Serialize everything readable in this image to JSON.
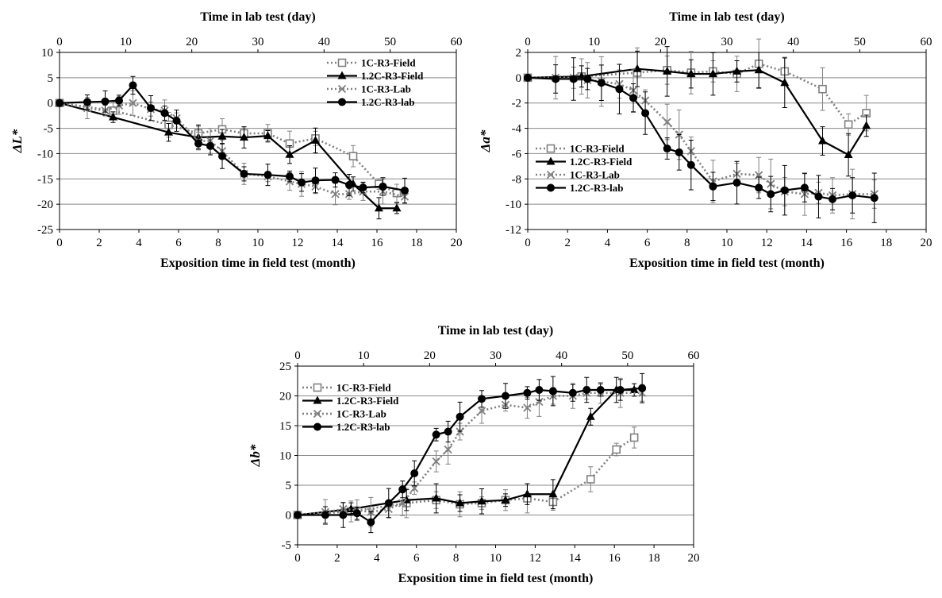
{
  "chart_data": [
    {
      "type": "line",
      "ylabel": "ΔL*",
      "xlabel": "Exposition time in field test (month)",
      "x2label": "Time in lab test (day)",
      "xlim": [
        0,
        20
      ],
      "x2lim": [
        0,
        60
      ],
      "ylim": [
        -25,
        10
      ],
      "x_ticks": [
        0,
        2,
        4,
        6,
        8,
        10,
        12,
        14,
        16,
        18,
        20
      ],
      "x2_ticks": [
        0,
        10,
        20,
        30,
        40,
        50,
        60
      ],
      "y_ticks": [
        10,
        5,
        0,
        -5,
        -10,
        -15,
        -20,
        -25
      ],
      "grid": "horizontal",
      "legend": "top-right",
      "series": [
        {
          "name": "1C-R3-Field",
          "marker": "square",
          "line": "dotted",
          "color": "#808080",
          "x": [
            0,
            2.7,
            5.5,
            7.0,
            8.2,
            9.3,
            10.5,
            11.6,
            12.9,
            14.8,
            16.1,
            17.0
          ],
          "y": [
            0,
            -1.5,
            -4.3,
            -6.0,
            -5.2,
            -6.0,
            -6.0,
            -8.0,
            -7.0,
            -10.5,
            -16.0,
            -17.8
          ]
        },
        {
          "name": "1.2C-R3-Field",
          "marker": "triangle",
          "line": "solid",
          "color": "#000000",
          "x": [
            0,
            2.7,
            5.5,
            7.0,
            8.2,
            9.3,
            10.5,
            11.6,
            12.9,
            14.8,
            16.1,
            17.0
          ],
          "y": [
            0,
            -2.8,
            -5.8,
            -6.8,
            -6.6,
            -6.8,
            -6.5,
            -10.2,
            -7.4,
            -16.0,
            -20.8,
            -20.8
          ]
        },
        {
          "name": "1C-R3-Lab",
          "marker": "x",
          "line": "dotted",
          "color": "#808080",
          "x": [
            0,
            1.4,
            2.3,
            3.0,
            3.7,
            4.6,
            5.3,
            5.9,
            7.0,
            7.6,
            8.2,
            9.3,
            10.5,
            11.6,
            12.2,
            12.9,
            13.9,
            14.6,
            15.3,
            16.3,
            17.4
          ],
          "y": [
            0,
            -1.0,
            -1.5,
            -0.5,
            0.0,
            -1.2,
            -1.5,
            -3.0,
            -7.5,
            -7.5,
            -9.5,
            -14.0,
            -14.5,
            -15.5,
            -16.0,
            -16.5,
            -18.0,
            -18.0,
            -17.5,
            -17.5,
            -18.5
          ]
        },
        {
          "name": "1.2C-R3-lab",
          "marker": "circle",
          "line": "solid",
          "color": "#000000",
          "x": [
            0,
            1.4,
            2.3,
            3.0,
            3.7,
            4.6,
            5.3,
            5.9,
            7.0,
            7.6,
            8.2,
            9.3,
            10.5,
            11.6,
            12.2,
            12.9,
            13.9,
            14.6,
            15.3,
            16.3,
            17.4
          ],
          "y": [
            0,
            0.2,
            0.3,
            0.5,
            3.5,
            -1.0,
            -2.0,
            -3.5,
            -8.0,
            -8.5,
            -10.5,
            -14.0,
            -14.2,
            -14.5,
            -15.7,
            -15.3,
            -15.2,
            -16.2,
            -16.7,
            -16.5,
            -17.3
          ]
        }
      ]
    },
    {
      "type": "line",
      "ylabel": "Δa*",
      "xlabel": "Exposition time in field test (month)",
      "x2label": "Time in lab test (day)",
      "xlim": [
        0,
        20
      ],
      "x2lim": [
        0,
        60
      ],
      "ylim": [
        -12,
        2
      ],
      "x_ticks": [
        0,
        2,
        4,
        6,
        8,
        10,
        12,
        14,
        16,
        18,
        20
      ],
      "x2_ticks": [
        0,
        10,
        20,
        30,
        40,
        50,
        60
      ],
      "y_ticks": [
        2,
        0,
        -2,
        -4,
        -6,
        -8,
        -10,
        -12
      ],
      "grid": "horizontal",
      "legend": "bottom-left",
      "series": [
        {
          "name": "1C-R3-Field",
          "marker": "square",
          "line": "dotted",
          "color": "#808080",
          "x": [
            0,
            2.7,
            5.5,
            7.0,
            8.2,
            9.3,
            10.5,
            11.6,
            12.9,
            14.8,
            16.1,
            17.0
          ],
          "y": [
            0,
            0.1,
            0.4,
            0.6,
            0.4,
            0.5,
            0.3,
            1.1,
            0.5,
            -0.9,
            -3.7,
            -2.8
          ]
        },
        {
          "name": "1.2C-R3-Field",
          "marker": "triangle",
          "line": "solid",
          "color": "#000000",
          "x": [
            0,
            2.7,
            5.5,
            7.0,
            8.2,
            9.3,
            10.5,
            11.6,
            12.9,
            14.8,
            16.1,
            17.0
          ],
          "y": [
            0,
            0.1,
            0.7,
            0.5,
            0.3,
            0.3,
            0.5,
            0.6,
            -0.4,
            -5.0,
            -6.1,
            -3.8
          ]
        },
        {
          "name": "1C-R3-Lab",
          "marker": "x",
          "line": "dotted",
          "color": "#808080",
          "x": [
            0,
            1.4,
            2.3,
            3.0,
            3.7,
            4.6,
            5.3,
            5.9,
            7.0,
            7.6,
            8.2,
            9.3,
            10.5,
            11.6,
            12.2,
            12.9,
            13.9,
            14.6,
            15.3,
            16.3,
            17.4
          ],
          "y": [
            0,
            0,
            0,
            -0.2,
            -0.3,
            -0.5,
            -1.0,
            -1.8,
            -3.5,
            -4.5,
            -5.8,
            -8.2,
            -7.6,
            -7.7,
            -8.4,
            -9.0,
            -9.2,
            -9.1,
            -9.3,
            -9.2,
            -9.2
          ]
        },
        {
          "name": "1.2C-R3-lab",
          "marker": "circle",
          "line": "solid",
          "color": "#000000",
          "x": [
            0,
            1.4,
            2.3,
            3.0,
            3.7,
            4.6,
            5.3,
            5.9,
            7.0,
            7.6,
            8.2,
            9.3,
            10.5,
            11.6,
            12.2,
            12.9,
            13.9,
            14.6,
            15.3,
            16.3,
            17.4
          ],
          "y": [
            0,
            -0.1,
            -0.1,
            -0.1,
            -0.4,
            -0.9,
            -1.6,
            -2.8,
            -5.6,
            -5.9,
            -6.9,
            -8.6,
            -8.3,
            -8.7,
            -9.2,
            -8.9,
            -8.7,
            -9.4,
            -9.6,
            -9.3,
            -9.5
          ]
        }
      ]
    },
    {
      "type": "line",
      "ylabel": "Δb*",
      "xlabel": "Exposition time in field test (month)",
      "x2label": "Time in lab test (day)",
      "xlim": [
        0,
        20
      ],
      "x2lim": [
        0,
        60
      ],
      "ylim": [
        -5,
        25
      ],
      "x_ticks": [
        0,
        2,
        4,
        6,
        8,
        10,
        12,
        14,
        16,
        18,
        20
      ],
      "x2_ticks": [
        0,
        10,
        20,
        30,
        40,
        50,
        60
      ],
      "y_ticks": [
        25,
        20,
        15,
        10,
        5,
        0,
        -5
      ],
      "grid": "horizontal",
      "legend": "top-left",
      "series": [
        {
          "name": "1C-R3-Field",
          "marker": "square",
          "line": "dotted",
          "color": "#808080",
          "x": [
            0,
            2.7,
            5.5,
            7.0,
            8.2,
            9.3,
            10.5,
            11.6,
            12.9,
            14.8,
            16.1,
            17.0
          ],
          "y": [
            0,
            0.6,
            2.0,
            2.5,
            1.8,
            2.0,
            2.5,
            2.8,
            2.2,
            6.0,
            11.0,
            13.0
          ]
        },
        {
          "name": "1.2C-R3-Field",
          "marker": "triangle",
          "line": "solid",
          "color": "#000000",
          "x": [
            0,
            2.7,
            5.5,
            7.0,
            8.2,
            9.3,
            10.5,
            11.6,
            12.9,
            14.8,
            16.1,
            17.0
          ],
          "y": [
            0,
            1.0,
            2.5,
            2.8,
            2.0,
            2.3,
            2.5,
            3.5,
            3.5,
            16.5,
            21.0,
            21.0
          ]
        },
        {
          "name": "1C-R3-Lab",
          "marker": "x",
          "line": "dotted",
          "color": "#808080",
          "x": [
            0,
            1.4,
            2.3,
            3.0,
            3.7,
            4.6,
            5.3,
            5.9,
            7.0,
            7.6,
            8.2,
            9.3,
            10.5,
            11.6,
            12.2,
            12.9,
            13.9,
            14.6,
            15.3,
            16.3,
            17.4
          ],
          "y": [
            0,
            0.5,
            1.0,
            0.8,
            0.5,
            1.0,
            2.0,
            4.5,
            9.0,
            11.0,
            14.0,
            17.5,
            18.5,
            18.0,
            19.0,
            20.0,
            20.0,
            20.5,
            20.5,
            20.5,
            20.5
          ]
        },
        {
          "name": "1.2C-R3-lab",
          "marker": "circle",
          "line": "solid",
          "color": "#000000",
          "x": [
            0,
            1.4,
            2.3,
            3.0,
            3.7,
            4.6,
            5.3,
            5.9,
            7.0,
            7.6,
            8.2,
            9.3,
            10.5,
            11.6,
            12.2,
            12.9,
            13.9,
            14.6,
            15.3,
            16.3,
            17.4
          ],
          "y": [
            0,
            0,
            0,
            0.3,
            -1.2,
            2.0,
            4.3,
            7.0,
            13.5,
            14.0,
            16.5,
            19.5,
            20.0,
            20.5,
            21.0,
            20.8,
            20.5,
            21.0,
            21.0,
            21.0,
            21.3
          ]
        }
      ]
    }
  ]
}
